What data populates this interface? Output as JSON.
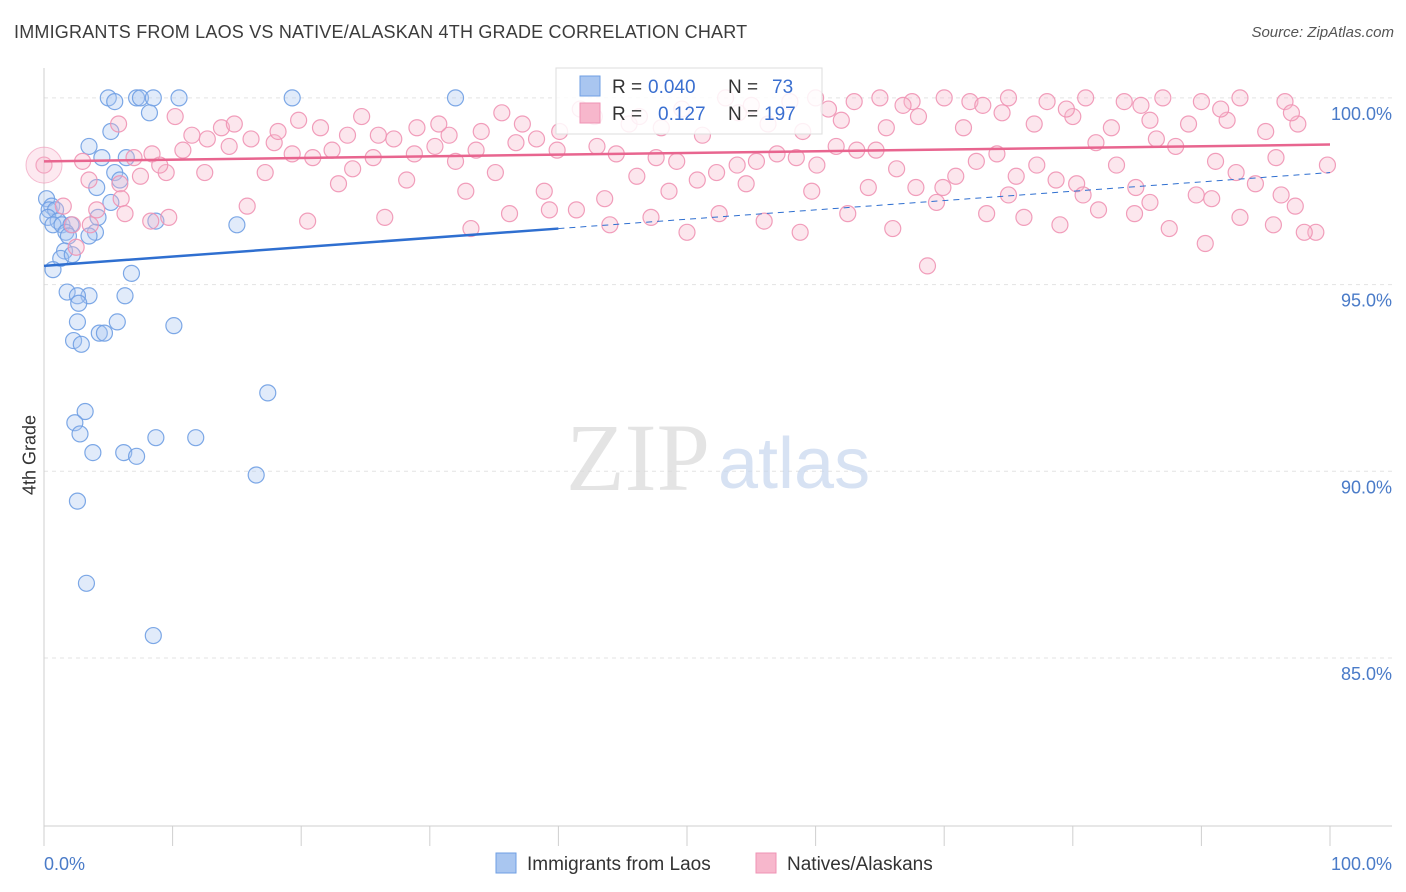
{
  "title": "IMMIGRANTS FROM LAOS VS NATIVE/ALASKAN 4TH GRADE CORRELATION CHART",
  "source": "Source: ZipAtlas.com",
  "watermark": {
    "zip": "ZIP",
    "atlas": "atlas"
  },
  "colors": {
    "blue": "#6f9fe3",
    "blue_line": "#2f6fd0",
    "pink": "#ef93b4",
    "pink_line": "#e8658f",
    "axis_text": "#4a7bc8"
  },
  "stats": {
    "r_label": "R =",
    "n_label": "N =",
    "rows": [
      {
        "series": "Immigrants from Laos",
        "r": "0.040",
        "n": "73"
      },
      {
        "series": "Natives/Alaskans",
        "r": "0.127",
        "n": "197"
      }
    ]
  },
  "chart_data": {
    "type": "scatter",
    "title": "IMMIGRANTS FROM LAOS VS NATIVE/ALASKAN 4TH GRADE CORRELATION CHART",
    "xlabel": "",
    "ylabel": "4th Grade",
    "xlim": [
      0,
      100
    ],
    "ylim": [
      80.5,
      100.8
    ],
    "x_tick_labels": [
      {
        "value": 0,
        "label": "0.0%"
      },
      {
        "value": 100,
        "label": "100.0%"
      }
    ],
    "y_tick_labels": [
      {
        "value": 100,
        "label": "100.0%"
      },
      {
        "value": 95,
        "label": "95.0%"
      },
      {
        "value": 90,
        "label": "90.0%"
      },
      {
        "value": 85,
        "label": "85.0%"
      }
    ],
    "grid": true,
    "legend": {
      "position": "bottom-center",
      "entries": [
        "Immigrants from Laos",
        "Natives/Alaskans"
      ]
    },
    "series": [
      {
        "name": "Immigrants from Laos",
        "color": "#6f9fe3",
        "trend": {
          "x0": 0,
          "y0": 95.5,
          "x1": 40,
          "y1": 96.5,
          "dashed_to": 100,
          "dashed_y": 98.0
        },
        "points": [
          [
            5,
            100
          ],
          [
            5.5,
            99.9
          ],
          [
            7.2,
            100
          ],
          [
            7.5,
            100
          ],
          [
            8.5,
            100
          ],
          [
            10.5,
            100
          ],
          [
            19.3,
            100
          ],
          [
            32,
            100
          ],
          [
            8.2,
            99.6
          ],
          [
            5.2,
            99.1
          ],
          [
            3.5,
            98.7
          ],
          [
            4.5,
            98.4
          ],
          [
            6.4,
            98.4
          ],
          [
            5.5,
            98.0
          ],
          [
            5.9,
            97.8
          ],
          [
            4.1,
            97.6
          ],
          [
            5.2,
            97.2
          ],
          [
            0.2,
            97.3
          ],
          [
            0.6,
            97.1
          ],
          [
            0.4,
            97.0
          ],
          [
            0.9,
            97.0
          ],
          [
            0.3,
            96.8
          ],
          [
            1.1,
            96.7
          ],
          [
            0.7,
            96.6
          ],
          [
            1.4,
            96.6
          ],
          [
            2.1,
            96.6
          ],
          [
            4.2,
            96.8
          ],
          [
            8.7,
            96.7
          ],
          [
            15,
            96.6
          ],
          [
            1.7,
            96.4
          ],
          [
            4.0,
            96.4
          ],
          [
            1.9,
            96.3
          ],
          [
            3.5,
            96.3
          ],
          [
            1.6,
            95.9
          ],
          [
            1.3,
            95.7
          ],
          [
            2.2,
            95.8
          ],
          [
            0.7,
            95.4
          ],
          [
            6.8,
            95.3
          ],
          [
            1.8,
            94.8
          ],
          [
            3.5,
            94.7
          ],
          [
            2.6,
            94.7
          ],
          [
            6.3,
            94.7
          ],
          [
            2.7,
            94.5
          ],
          [
            2.6,
            94.0
          ],
          [
            5.7,
            94.0
          ],
          [
            10.1,
            93.9
          ],
          [
            4.3,
            93.7
          ],
          [
            4.7,
            93.7
          ],
          [
            2.3,
            93.5
          ],
          [
            2.9,
            93.4
          ],
          [
            17.4,
            92.1
          ],
          [
            3.2,
            91.6
          ],
          [
            2.4,
            91.3
          ],
          [
            2.8,
            91.0
          ],
          [
            8.7,
            90.9
          ],
          [
            11.8,
            90.9
          ],
          [
            3.8,
            90.5
          ],
          [
            6.2,
            90.5
          ],
          [
            7.2,
            90.4
          ],
          [
            16.5,
            89.9
          ],
          [
            2.6,
            89.2
          ],
          [
            3.3,
            87.0
          ],
          [
            8.5,
            85.6
          ]
        ]
      },
      {
        "name": "Natives/Alaskans",
        "color": "#ef93b4",
        "trend": {
          "x0": 0,
          "y0": 98.3,
          "x1": 100,
          "y1": 98.75
        },
        "points": [
          [
            0,
            98.2
          ],
          [
            3.5,
            97.8
          ],
          [
            5.9,
            97.7
          ],
          [
            7.5,
            97.9
          ],
          [
            9.5,
            98.0
          ],
          [
            12.5,
            98.0
          ],
          [
            6.0,
            97.3
          ],
          [
            4.1,
            97.0
          ],
          [
            3.6,
            96.6
          ],
          [
            2.5,
            96.0
          ],
          [
            7.0,
            98.4
          ],
          [
            8.4,
            98.5
          ],
          [
            10.8,
            98.6
          ],
          [
            12.7,
            98.9
          ],
          [
            14.4,
            98.7
          ],
          [
            16.1,
            98.9
          ],
          [
            17.9,
            98.8
          ],
          [
            19.3,
            98.5
          ],
          [
            20.9,
            98.4
          ],
          [
            22.4,
            98.6
          ],
          [
            24.0,
            98.1
          ],
          [
            25.6,
            98.4
          ],
          [
            27.2,
            98.9
          ],
          [
            28.8,
            98.5
          ],
          [
            30.4,
            98.7
          ],
          [
            32.0,
            98.3
          ],
          [
            33.6,
            98.6
          ],
          [
            35.1,
            98.0
          ],
          [
            36.7,
            98.8
          ],
          [
            38.3,
            98.9
          ],
          [
            39.9,
            98.6
          ],
          [
            41.4,
            97.0
          ],
          [
            43.0,
            98.7
          ],
          [
            44.5,
            98.5
          ],
          [
            46.1,
            97.9
          ],
          [
            47.6,
            98.4
          ],
          [
            49.2,
            98.3
          ],
          [
            50.8,
            97.8
          ],
          [
            52.3,
            98.0
          ],
          [
            53.9,
            98.2
          ],
          [
            55.4,
            98.3
          ],
          [
            57.0,
            98.5
          ],
          [
            58.5,
            98.4
          ],
          [
            60.1,
            98.2
          ],
          [
            61.6,
            98.7
          ],
          [
            63.2,
            98.6
          ],
          [
            64.7,
            98.6
          ],
          [
            66.3,
            98.1
          ],
          [
            67.8,
            97.6
          ],
          [
            69.4,
            97.2
          ],
          [
            70.9,
            97.9
          ],
          [
            72.5,
            98.3
          ],
          [
            74.1,
            98.5
          ],
          [
            75.6,
            97.9
          ],
          [
            77.2,
            98.2
          ],
          [
            78.7,
            97.8
          ],
          [
            80.3,
            97.7
          ],
          [
            81.8,
            98.8
          ],
          [
            83.4,
            98.2
          ],
          [
            84.9,
            97.6
          ],
          [
            86.5,
            98.9
          ],
          [
            88.0,
            98.7
          ],
          [
            89.6,
            97.4
          ],
          [
            91.1,
            98.3
          ],
          [
            92.7,
            98.0
          ],
          [
            94.2,
            97.7
          ],
          [
            95.8,
            98.4
          ],
          [
            97.3,
            97.1
          ],
          [
            98.9,
            96.4
          ],
          [
            99.8,
            98.2
          ],
          [
            11.5,
            99.0
          ],
          [
            13.8,
            99.2
          ],
          [
            18.2,
            99.1
          ],
          [
            21.5,
            99.2
          ],
          [
            23.6,
            99.0
          ],
          [
            26.0,
            99.0
          ],
          [
            29.0,
            99.2
          ],
          [
            31.5,
            99.0
          ],
          [
            34.0,
            99.1
          ],
          [
            37.2,
            99.3
          ],
          [
            40.1,
            99.1
          ],
          [
            42.8,
            99.5
          ],
          [
            45.5,
            99.3
          ],
          [
            48.0,
            99.2
          ],
          [
            51.2,
            99.0
          ],
          [
            54.0,
            99.6
          ],
          [
            56.3,
            99.3
          ],
          [
            59.0,
            99.1
          ],
          [
            62.0,
            99.4
          ],
          [
            65.5,
            99.2
          ],
          [
            68.0,
            99.5
          ],
          [
            71.5,
            99.2
          ],
          [
            74.5,
            99.6
          ],
          [
            77.0,
            99.3
          ],
          [
            80.0,
            99.5
          ],
          [
            83.0,
            99.2
          ],
          [
            86.0,
            99.4
          ],
          [
            89.0,
            99.3
          ],
          [
            92.0,
            99.4
          ],
          [
            95.0,
            99.1
          ],
          [
            97.5,
            99.3
          ],
          [
            53.0,
            100
          ],
          [
            58.0,
            99.9
          ],
          [
            60.0,
            100
          ],
          [
            63.0,
            99.9
          ],
          [
            65.0,
            100
          ],
          [
            67.5,
            99.9
          ],
          [
            70.0,
            100
          ],
          [
            72.0,
            99.9
          ],
          [
            75.0,
            100
          ],
          [
            78.0,
            99.9
          ],
          [
            81.0,
            100
          ],
          [
            84.0,
            99.9
          ],
          [
            87.0,
            100
          ],
          [
            90.0,
            99.9
          ],
          [
            93.0,
            100
          ],
          [
            96.5,
            99.9
          ],
          [
            1.5,
            97.1
          ],
          [
            2.2,
            96.6
          ],
          [
            6.3,
            96.9
          ],
          [
            8.3,
            96.7
          ],
          [
            9.7,
            96.8
          ],
          [
            15.8,
            97.1
          ],
          [
            20.5,
            96.7
          ],
          [
            26.5,
            96.8
          ],
          [
            33.2,
            96.5
          ],
          [
            36.2,
            96.9
          ],
          [
            39.3,
            97.0
          ],
          [
            44.0,
            96.6
          ],
          [
            47.2,
            96.8
          ],
          [
            50.0,
            96.4
          ],
          [
            52.5,
            96.9
          ],
          [
            56.0,
            96.7
          ],
          [
            58.8,
            96.4
          ],
          [
            62.5,
            96.9
          ],
          [
            66.0,
            96.5
          ],
          [
            68.7,
            95.5
          ],
          [
            73.3,
            96.9
          ],
          [
            76.2,
            96.8
          ],
          [
            79.0,
            96.6
          ],
          [
            82.0,
            97.0
          ],
          [
            84.8,
            96.9
          ],
          [
            87.5,
            96.5
          ],
          [
            90.3,
            96.1
          ],
          [
            93.0,
            96.8
          ],
          [
            95.6,
            96.6
          ],
          [
            98.0,
            96.4
          ],
          [
            5.8,
            99.3
          ],
          [
            10.2,
            99.5
          ],
          [
            14.8,
            99.3
          ],
          [
            19.8,
            99.4
          ],
          [
            24.7,
            99.5
          ],
          [
            30.7,
            99.3
          ],
          [
            35.6,
            99.6
          ],
          [
            41.7,
            99.7
          ],
          [
            46.3,
            99.5
          ],
          [
            49.6,
            99.7
          ],
          [
            55.0,
            99.8
          ],
          [
            61.0,
            99.7
          ],
          [
            66.8,
            99.8
          ],
          [
            73.0,
            99.8
          ],
          [
            79.5,
            99.7
          ],
          [
            85.3,
            99.8
          ],
          [
            91.5,
            99.7
          ],
          [
            97.0,
            99.6
          ],
          [
            3.0,
            98.3
          ],
          [
            9.0,
            98.2
          ],
          [
            17.2,
            98.0
          ],
          [
            22.9,
            97.7
          ],
          [
            28.2,
            97.8
          ],
          [
            32.8,
            97.5
          ],
          [
            38.9,
            97.5
          ],
          [
            43.6,
            97.3
          ],
          [
            48.6,
            97.5
          ],
          [
            54.6,
            97.7
          ],
          [
            59.7,
            97.5
          ],
          [
            64.1,
            97.6
          ],
          [
            69.9,
            97.6
          ],
          [
            75.0,
            97.4
          ],
          [
            80.8,
            97.4
          ],
          [
            86.0,
            97.2
          ],
          [
            90.8,
            97.3
          ],
          [
            96.2,
            97.4
          ]
        ]
      }
    ]
  }
}
